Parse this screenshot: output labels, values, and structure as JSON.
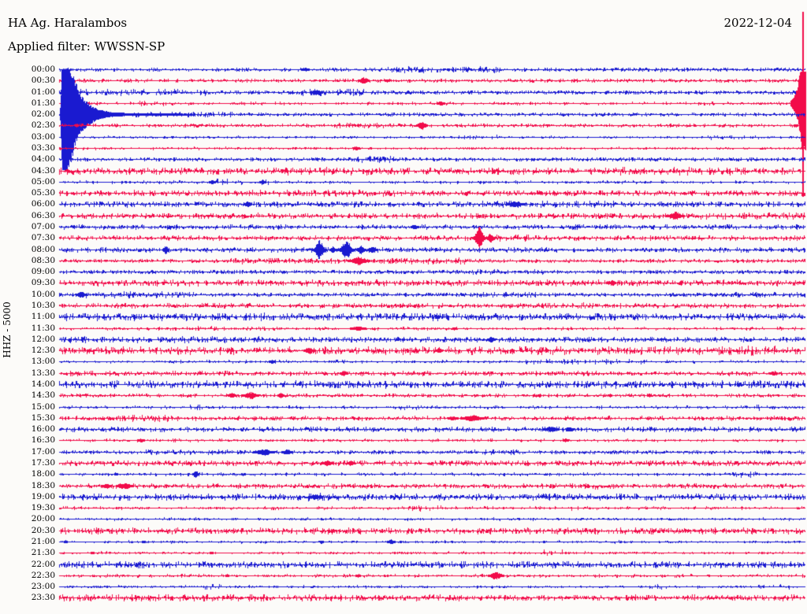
{
  "header": {
    "station": "HA Ag. Haralambos",
    "date": "2022-12-04",
    "filter_line": "Applied filter: WWSSN-SP"
  },
  "chart_data": {
    "type": "helicorder-seismogram",
    "title": "HA Ag. Haralambos",
    "date": "2022-12-04",
    "filter": "WWSSN-SP",
    "ylabel": "HHZ - 5000",
    "channel": "HHZ",
    "gain": 5000,
    "minutes_per_row": 30,
    "legend": "alternating blue/red traces, one 30-minute row each, 00:00 to 23:30",
    "colors": {
      "blue": "#1A1AD0",
      "red": "#F20C4A"
    },
    "rows": [
      {
        "t": "00:00",
        "c": "b",
        "base": 0.9,
        "segs": [
          [
            0.44,
            0.59,
            1.8
          ],
          [
            0.73,
            0.85,
            1.2
          ]
        ],
        "ev": [
          [
            0.33,
            2,
            4
          ]
        ]
      },
      {
        "t": "00:30",
        "c": "r",
        "base": 0.9,
        "ev": [
          [
            0.408,
            4,
            5
          ],
          [
            0.44,
            2,
            3
          ]
        ]
      },
      {
        "t": "01:00",
        "c": "b",
        "base": 1.1,
        "segs": [
          [
            0.0,
            0.2,
            1.8
          ],
          [
            0.32,
            0.41,
            2.0
          ]
        ],
        "ev": [
          [
            0.345,
            3,
            6
          ]
        ]
      },
      {
        "t": "01:30",
        "c": "r",
        "base": 0.8,
        "segs": [
          [
            0.09,
            0.14,
            1.4
          ]
        ],
        "ev": [
          [
            0.512,
            2.5,
            4
          ]
        ],
        "rise": {
          "amp": 65,
          "width": 18,
          "clipUp": 40,
          "clipDown": 85,
          "spikeUp": 116,
          "spikeDown": 119
        }
      },
      {
        "t": "02:00",
        "c": "b",
        "base": 0.9,
        "segs": [
          [
            0.1,
            0.24,
            1.6
          ]
        ],
        "decay": {
          "onset": 0.004,
          "amp": 130,
          "tau": 14,
          "tail": 230,
          "clipUp": 56,
          "clipDown": 70
        }
      },
      {
        "t": "02:30",
        "c": "r",
        "base": 0.9,
        "segs": [
          [
            0.37,
            0.45,
            1.5
          ]
        ],
        "ev": [
          [
            0.486,
            5,
            5
          ],
          [
            0.023,
            2,
            2
          ]
        ]
      },
      {
        "t": "03:00",
        "c": "b",
        "base": 0.7,
        "segs": [
          [
            0.53,
            0.59,
            1.3
          ],
          [
            0.87,
            0.94,
            1.3
          ]
        ]
      },
      {
        "t": "03:30",
        "c": "r",
        "base": 0.7,
        "ev": [
          [
            0.399,
            2.5,
            3
          ]
        ]
      },
      {
        "t": "04:00",
        "c": "b",
        "base": 1.0,
        "segs": [
          [
            0.4,
            0.45,
            1.8
          ]
        ]
      },
      {
        "t": "04:30",
        "c": "r",
        "base": 1.9,
        "segs": [
          [
            0.3,
            0.42,
            2.4
          ],
          [
            0.75,
            0.9,
            2.4
          ]
        ]
      },
      {
        "t": "05:00",
        "c": "b",
        "base": 0.8,
        "segs": [
          [
            0.2,
            0.28,
            1.9
          ]
        ],
        "ev": [
          [
            0.205,
            2.5,
            3
          ],
          [
            0.273,
            2.5,
            3
          ]
        ]
      },
      {
        "t": "05:30",
        "c": "r",
        "base": 1.6,
        "segs": [
          [
            0.25,
            0.45,
            2.0
          ]
        ]
      },
      {
        "t": "06:00",
        "c": "b",
        "base": 1.6,
        "segs": [
          [
            0.55,
            0.75,
            1.9
          ]
        ],
        "ev": [
          [
            0.253,
            3,
            4
          ],
          [
            0.612,
            3.5,
            8
          ]
        ]
      },
      {
        "t": "06:30",
        "c": "r",
        "base": 1.6,
        "segs": [
          [
            0.86,
            1.0,
            1.9
          ]
        ],
        "ev": [
          [
            0.827,
            5,
            7
          ]
        ]
      },
      {
        "t": "07:00",
        "c": "b",
        "base": 1.3,
        "segs": [
          [
            0.66,
            0.7,
            1.6
          ],
          [
            0.93,
            1.0,
            1.5
          ]
        ],
        "ev": [
          [
            0.477,
            3,
            4
          ]
        ]
      },
      {
        "t": "07:30",
        "c": "r",
        "base": 1.3,
        "segs": [
          [
            0.47,
            0.55,
            1.7
          ],
          [
            0.585,
            0.63,
            1.9
          ]
        ],
        "ev": [
          [
            0.563,
            14,
            5
          ],
          [
            0.578,
            5,
            4
          ]
        ]
      },
      {
        "t": "08:00",
        "c": "b",
        "base": 1.3,
        "segs": [
          [
            0.29,
            0.34,
            1.6
          ]
        ],
        "ev": [
          [
            0.143,
            5,
            3
          ],
          [
            0.349,
            13,
            5
          ],
          [
            0.367,
            4,
            3
          ],
          [
            0.385,
            12,
            6
          ],
          [
            0.405,
            5,
            4
          ],
          [
            0.42,
            4,
            4
          ]
        ]
      },
      {
        "t": "08:30",
        "c": "r",
        "base": 1.0,
        "segs": [
          [
            0.23,
            0.38,
            1.6
          ],
          [
            0.43,
            0.55,
            1.7
          ]
        ],
        "ev": [
          [
            0.402,
            5,
            9
          ]
        ]
      },
      {
        "t": "09:00",
        "c": "b",
        "base": 1.1,
        "segs": [
          [
            0.55,
            0.66,
            1.4
          ]
        ]
      },
      {
        "t": "09:30",
        "c": "r",
        "base": 1.7,
        "ev": [
          [
            0.742,
            4,
            3
          ]
        ]
      },
      {
        "t": "10:00",
        "c": "b",
        "base": 1.1,
        "segs": [
          [
            0.035,
            0.185,
            1.9
          ],
          [
            0.56,
            0.64,
            1.6
          ],
          [
            0.9,
            1.0,
            1.5
          ]
        ],
        "ev": [
          [
            0.03,
            3.5,
            5
          ]
        ]
      },
      {
        "t": "10:30",
        "c": "r",
        "base": 1.3,
        "segs": [
          [
            0.62,
            0.72,
            1.6
          ]
        ]
      },
      {
        "t": "11:00",
        "c": "b",
        "base": 2.1
      },
      {
        "t": "11:30",
        "c": "r",
        "base": 0.8,
        "segs": [
          [
            0.17,
            0.31,
            1.2
          ]
        ],
        "ev": [
          [
            0.401,
            2.5,
            8
          ],
          [
            0.53,
            1.8,
            2
          ]
        ]
      },
      {
        "t": "12:00",
        "c": "b",
        "base": 1.4,
        "segs": [
          [
            0.0,
            0.27,
            1.7
          ]
        ],
        "ev": [
          [
            0.579,
            3.5,
            4
          ]
        ]
      },
      {
        "t": "12:30",
        "c": "r",
        "base": 2.2,
        "segs": [
          [
            0.9,
            0.96,
            2.6
          ]
        ],
        "ev": [
          [
            0.335,
            4,
            5
          ],
          [
            0.51,
            3,
            3
          ]
        ]
      },
      {
        "t": "13:00",
        "c": "b",
        "base": 0.8,
        "segs": [
          [
            0.62,
            0.78,
            1.6
          ]
        ],
        "ev": [
          [
            0.285,
            2.5,
            3
          ]
        ]
      },
      {
        "t": "13:30",
        "c": "r",
        "base": 1.2,
        "segs": [
          [
            0.0,
            0.24,
            1.4
          ],
          [
            0.655,
            0.73,
            1.4
          ]
        ],
        "ev": [
          [
            0.382,
            3,
            4
          ],
          [
            0.958,
            2.5,
            4
          ]
        ]
      },
      {
        "t": "14:00",
        "c": "b",
        "base": 2.1
      },
      {
        "t": "14:30",
        "c": "r",
        "base": 0.9,
        "ev": [
          [
            0.257,
            4.5,
            7
          ],
          [
            0.232,
            3,
            4
          ],
          [
            0.297,
            3,
            3
          ],
          [
            0.644,
            2,
            2
          ],
          [
            0.739,
            2,
            2
          ],
          [
            0.792,
            2,
            2
          ]
        ]
      },
      {
        "t": "15:00",
        "c": "b",
        "base": 0.8,
        "segs": [
          [
            0.17,
            0.19,
            1.6
          ],
          [
            0.45,
            0.49,
            1.5
          ],
          [
            0.915,
            0.94,
            1.9
          ]
        ]
      },
      {
        "t": "15:30",
        "c": "r",
        "base": 1.2,
        "segs": [
          [
            0.08,
            0.15,
            1.9
          ]
        ],
        "ev": [
          [
            0.554,
            4,
            10
          ],
          [
            0.528,
            2.5,
            5
          ]
        ]
      },
      {
        "t": "16:00",
        "c": "b",
        "base": 1.3,
        "ev": [
          [
            0.66,
            3.5,
            7
          ],
          [
            0.685,
            2.8,
            4
          ]
        ]
      },
      {
        "t": "16:30",
        "c": "r",
        "base": 0.8,
        "ev": [
          [
            0.109,
            2.5,
            3
          ],
          [
            0.68,
            2,
            3
          ]
        ]
      },
      {
        "t": "17:00",
        "c": "b",
        "base": 1.0,
        "segs": [
          [
            0.1,
            0.24,
            1.4
          ],
          [
            0.557,
            0.615,
            1.5
          ]
        ],
        "ev": [
          [
            0.275,
            4,
            9
          ],
          [
            0.305,
            3.5,
            5
          ]
        ]
      },
      {
        "t": "17:30",
        "c": "r",
        "base": 1.5,
        "ev": [
          [
            0.359,
            3.5,
            5
          ],
          [
            0.391,
            3,
            4
          ]
        ]
      },
      {
        "t": "18:00",
        "c": "b",
        "base": 0.8,
        "segs": [
          [
            0.9,
            0.935,
            1.9
          ]
        ],
        "ev": [
          [
            0.076,
            2,
            2
          ],
          [
            0.183,
            4,
            3
          ]
        ]
      },
      {
        "t": "18:30",
        "c": "r",
        "base": 1.3,
        "segs": [
          [
            0.71,
            0.725,
            1.9
          ]
        ],
        "ev": [
          [
            0.088,
            3.5,
            8
          ],
          [
            0.063,
            2.8,
            5
          ]
        ]
      },
      {
        "t": "19:00",
        "c": "b",
        "base": 1.8,
        "segs": [
          [
            0.32,
            0.39,
            2.2
          ]
        ],
        "ev": [
          [
            0.343,
            3,
            6
          ]
        ]
      },
      {
        "t": "19:30",
        "c": "r",
        "base": 0.8,
        "segs": [
          [
            0.468,
            0.518,
            1.7
          ],
          [
            0.68,
            0.7,
            1.7
          ]
        ]
      },
      {
        "t": "20:00",
        "c": "b",
        "base": 0.7
      },
      {
        "t": "20:30",
        "c": "r",
        "base": 1.7,
        "ev": [
          [
            0.797,
            2.2,
            2
          ],
          [
            0.932,
            2,
            2
          ]
        ]
      },
      {
        "t": "21:00",
        "c": "b",
        "base": 0.7,
        "ev": [
          [
            0.445,
            2.8,
            4
          ],
          [
            0.008,
            1.8,
            2
          ],
          [
            0.113,
            1.8,
            2
          ],
          [
            0.352,
            1.8,
            2
          ]
        ]
      },
      {
        "t": "21:30",
        "c": "r",
        "base": 0.7,
        "segs": [
          [
            0.65,
            0.68,
            1.7
          ]
        ],
        "ev": [
          [
            0.044,
            1.8,
            2
          ],
          [
            0.204,
            1.8,
            2
          ]
        ]
      },
      {
        "t": "22:00",
        "c": "b",
        "base": 1.9
      },
      {
        "t": "22:30",
        "c": "r",
        "base": 0.8,
        "ev": [
          [
            0.586,
            4.5,
            7
          ],
          [
            0.401,
            2,
            3
          ],
          [
            0.225,
            1.8,
            2
          ]
        ]
      },
      {
        "t": "23:00",
        "c": "b",
        "base": 0.7,
        "segs": [
          [
            0.183,
            0.219,
            1.6
          ],
          [
            0.79,
            0.815,
            1.4
          ],
          [
            0.935,
            0.985,
            1.3
          ]
        ]
      },
      {
        "t": "23:30",
        "c": "r",
        "base": 1.6,
        "segs": [
          [
            0.0,
            0.41,
            2.0
          ],
          [
            0.48,
            0.52,
            1.8
          ],
          [
            0.77,
            0.87,
            1.7
          ],
          [
            0.975,
            1.0,
            2.0
          ]
        ]
      }
    ]
  }
}
